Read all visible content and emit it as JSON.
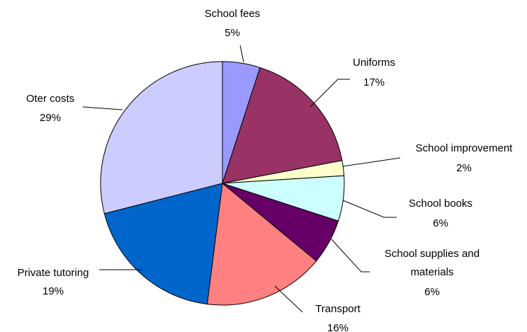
{
  "chart_data": {
    "type": "pie",
    "start_angle_deg": 0,
    "direction": "clockwise",
    "slices": [
      {
        "name": "School fees",
        "value": 5,
        "label": "5%",
        "color": "#9999FF"
      },
      {
        "name": "Uniforms",
        "value": 17,
        "label": "17%",
        "color": "#993366"
      },
      {
        "name": "School improvement",
        "value": 2,
        "label": "2%",
        "color": "#FFFFCC"
      },
      {
        "name": "School books",
        "value": 6,
        "label": "6%",
        "color": "#CCFFFF"
      },
      {
        "name": "School supplies and materials",
        "value": 6,
        "label": "6%",
        "color": "#660066"
      },
      {
        "name": "Transport",
        "value": 16,
        "label": "16%",
        "color": "#FF8080"
      },
      {
        "name": "Private tutoring",
        "value": 19,
        "label": "19%",
        "color": "#0066CC"
      },
      {
        "name": "Oter costs",
        "value": 29,
        "label": "29%",
        "color": "#CCCCFF"
      }
    ]
  }
}
